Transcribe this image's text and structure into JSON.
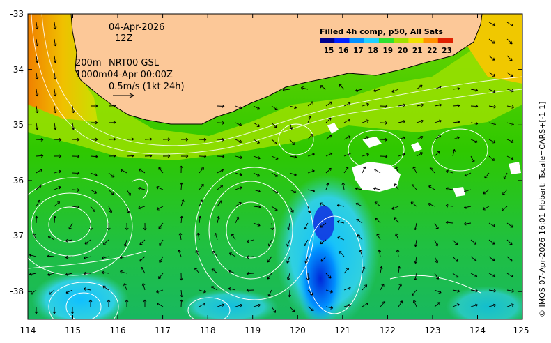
{
  "header": {
    "date": "04-Apr-2026",
    "hour": "12Z",
    "depth_contour_1": "200m",
    "depth_contour_2": "1000m",
    "product": "NRT00 GSL",
    "product_time": "04-Apr 00:00Z",
    "vector_scale": "0.5m/s (1kt 24h)"
  },
  "legend": {
    "title": "Filled 4h comp, p50, All Sats",
    "values": [
      "15",
      "16",
      "17",
      "18",
      "19",
      "20",
      "21",
      "22",
      "23"
    ],
    "colors": [
      "#00008f",
      "#0020ff",
      "#0090ff",
      "#20d0ff",
      "#30e030",
      "#a0e000",
      "#f0e000",
      "#ff9000",
      "#e02000"
    ]
  },
  "credit": "© IMOS 07-Apr-2026 16:01 Hobart; Tscale=CARS+[-1 1]",
  "axes": {
    "lon_range": [
      114,
      125
    ],
    "lat_range": [
      -38.5,
      -33
    ],
    "x_ticks": [
      "114",
      "115",
      "116",
      "117",
      "118",
      "119",
      "120",
      "121",
      "122",
      "123",
      "124",
      "125"
    ],
    "y_ticks": [
      "-33",
      "-34",
      "-35",
      "-36",
      "-37",
      "-38"
    ]
  },
  "colors": {
    "land": "#fcc898",
    "sst_warm": "#f0d800",
    "sst_mid": "#50d000",
    "sst_cool": "#10c8f0",
    "sst_cold": "#0030e0",
    "cloud": "#ffffff",
    "contour": "#ffffff",
    "arrow": "#000000"
  }
}
